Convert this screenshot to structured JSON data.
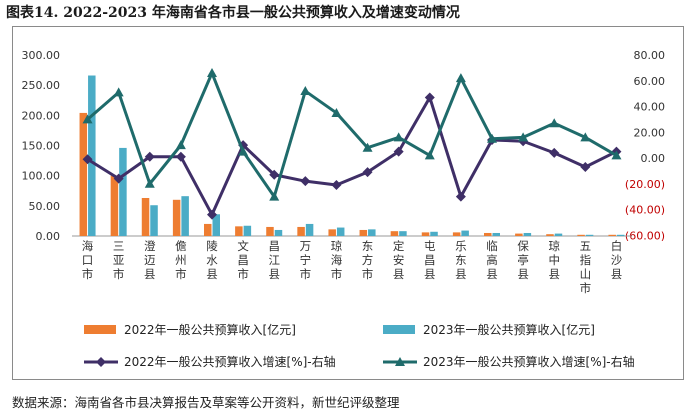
{
  "title": "图表14.   2022-2023 年海南省各市县一般公共预算收入及增速变动情况",
  "source": "数据来源：海南省各市县决算报告及草案等公开资料，新世纪评级整理",
  "colors": {
    "bar_2022": "#ee7d31",
    "bar_2023": "#4bacc6",
    "line_2022": "#3f2f67",
    "line_2023": "#1f6b6b"
  },
  "chart_data": {
    "type": "bar+line",
    "categories": [
      "海口市",
      "三亚市",
      "澄迈县",
      "儋州市",
      "陵水县",
      "文昌市",
      "昌江县",
      "万宁市",
      "琼海市",
      "东方市",
      "定安县",
      "屯昌县",
      "乐东县",
      "临高县",
      "保亭县",
      "琼中县",
      "五指山市",
      "白沙县"
    ],
    "left_axis": {
      "min": 0,
      "max": 300,
      "ticks": [
        "0.00",
        "50.00",
        "100.00",
        "150.00",
        "200.00",
        "250.00",
        "300.00"
      ]
    },
    "right_axis": {
      "min": -60,
      "max": 80,
      "ticks": [
        "(60.00)",
        "(40.00)",
        "(20.00)",
        "0.00",
        "20.00",
        "40.00",
        "60.00",
        "80.00"
      ]
    },
    "series": [
      {
        "name": "2022年一般公共预算收入[亿元]",
        "kind": "bar",
        "axis": "left",
        "values": [
          204,
          100,
          63,
          60,
          20,
          16,
          15,
          15,
          11,
          10,
          8,
          6,
          6,
          5,
          4,
          3,
          2,
          2
        ]
      },
      {
        "name": "2023年一般公共预算收入[亿元]",
        "kind": "bar",
        "axis": "left",
        "values": [
          266,
          146,
          51,
          66,
          36,
          17,
          10,
          20,
          14,
          11,
          8,
          7,
          9,
          5,
          5,
          4,
          2,
          2
        ]
      },
      {
        "name": "2022年一般公共预算收入增速[%]-右轴",
        "kind": "line",
        "axis": "right",
        "values": [
          -1,
          -16,
          1,
          1,
          -44,
          10,
          -13,
          -18,
          -21,
          -11,
          5,
          47,
          -30,
          14,
          13,
          4,
          -7,
          5
        ]
      },
      {
        "name": "2023年一般公共预算收入增速[%]-右轴",
        "kind": "line",
        "axis": "right",
        "values": [
          30,
          51,
          -20,
          10,
          66,
          5,
          -30,
          52,
          35,
          8,
          16,
          2,
          62,
          15,
          16,
          27,
          16,
          2
        ]
      }
    ]
  }
}
